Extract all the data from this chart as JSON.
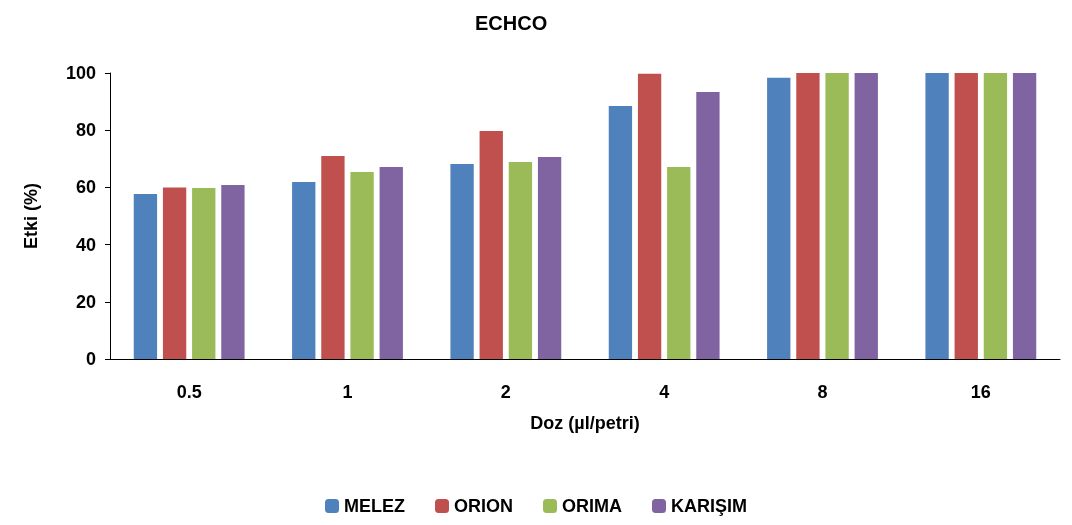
{
  "chart_data": {
    "type": "bar",
    "title": "ECHCO",
    "xlabel": "Doz (µl/petri)",
    "ylabel": "Etki (%)",
    "categories": [
      "0.5",
      "1",
      "2",
      "4",
      "8",
      "16"
    ],
    "series": [
      {
        "name": "MELEZ",
        "color": "#4f81bd",
        "values": [
          57.7,
          61.9,
          68.2,
          88.5,
          98.3,
          100
        ]
      },
      {
        "name": "ORION",
        "color": "#c0504d",
        "values": [
          60,
          71,
          79.7,
          99.7,
          100,
          100
        ]
      },
      {
        "name": "ORIMA",
        "color": "#9bbb59",
        "values": [
          59.8,
          65.4,
          68.9,
          67.1,
          100,
          100
        ]
      },
      {
        "name": "KARIŞIM",
        "color": "#8064a2",
        "values": [
          60.8,
          67.1,
          70.6,
          93.4,
          100,
          100
        ]
      }
    ],
    "ylim": [
      0,
      100
    ],
    "yticks": [
      0,
      20,
      40,
      60,
      80,
      100
    ],
    "grid": false,
    "legend": "bottom"
  }
}
